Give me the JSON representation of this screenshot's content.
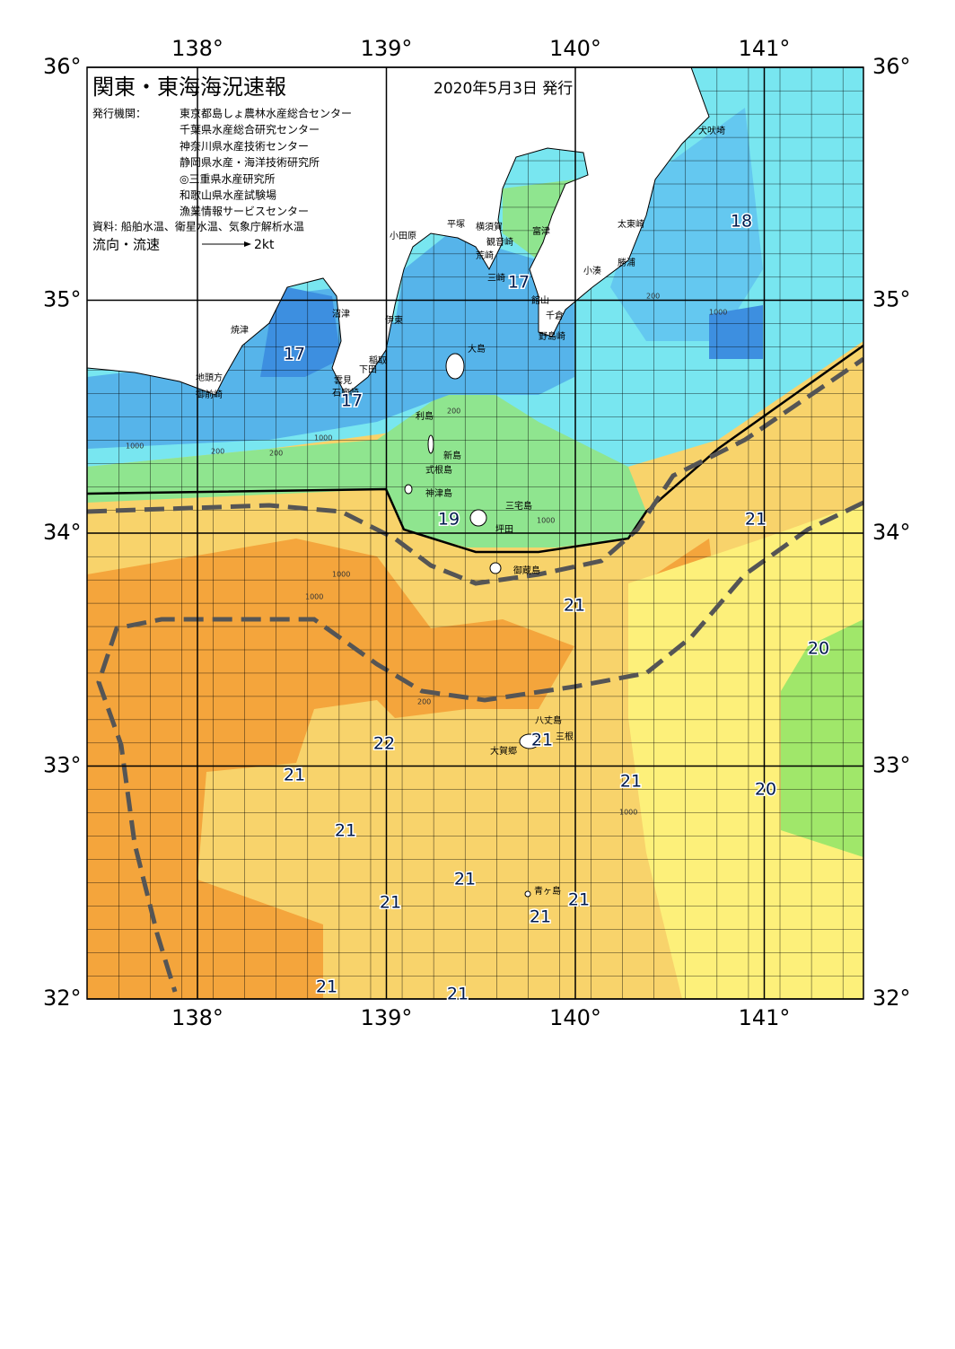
{
  "header": {
    "title": "関東・東海海況速報",
    "date": "2020年5月3日 発行"
  },
  "info": {
    "agency_label": "発行機関：",
    "agencies": [
      "東京都島しょ農林水産総合センター",
      "千葉県水産総合研究センター",
      "神奈川県水産技術センター",
      "静岡県水産・海洋技術研究所",
      "◎三重県水産研究所",
      "和歌山県水産試験場",
      "漁業情報サービスセンター"
    ],
    "source": "資料: 船舶水温、衛星水温、気象庁解析水温",
    "legend_label": "流向・流速",
    "legend_scale": "2kt"
  },
  "axes": {
    "lon_ticks": [
      {
        "value": 138,
        "label": "138°"
      },
      {
        "value": 139,
        "label": "139°"
      },
      {
        "value": 140,
        "label": "140°"
      },
      {
        "value": 141,
        "label": "141°"
      }
    ],
    "lat_ticks": [
      {
        "value": 36,
        "label": "36°"
      },
      {
        "value": 35,
        "label": "35°"
      },
      {
        "value": 34,
        "label": "34°"
      },
      {
        "value": 33,
        "label": "33°"
      },
      {
        "value": 32,
        "label": "32°"
      }
    ]
  },
  "place_names": [
    "犬吠埼",
    "太東崎",
    "勝浦",
    "小湊",
    "富津",
    "館山",
    "千倉",
    "野島崎",
    "観音崎",
    "横須賀",
    "平塚",
    "小田原",
    "荒崎",
    "三崎",
    "沼津",
    "伊東",
    "焼津",
    "稲取",
    "下田",
    "雲見",
    "石廊崎",
    "地頭方",
    "御前崎",
    "大島",
    "利島",
    "新島",
    "式根島",
    "神津島",
    "三宅島",
    "坪田",
    "御蔵島",
    "八丈島",
    "三根",
    "大賀郷",
    "青ヶ島"
  ],
  "temperature_labels": [
    17,
    17,
    17,
    18,
    19,
    21,
    21,
    20,
    22,
    21,
    21,
    21,
    20,
    21,
    21,
    21,
    21,
    21,
    21,
    21
  ],
  "depth_labels": [
    200,
    1000,
    200,
    1000,
    200,
    1000,
    200,
    1000,
    1000,
    1000,
    200,
    1000
  ]
}
